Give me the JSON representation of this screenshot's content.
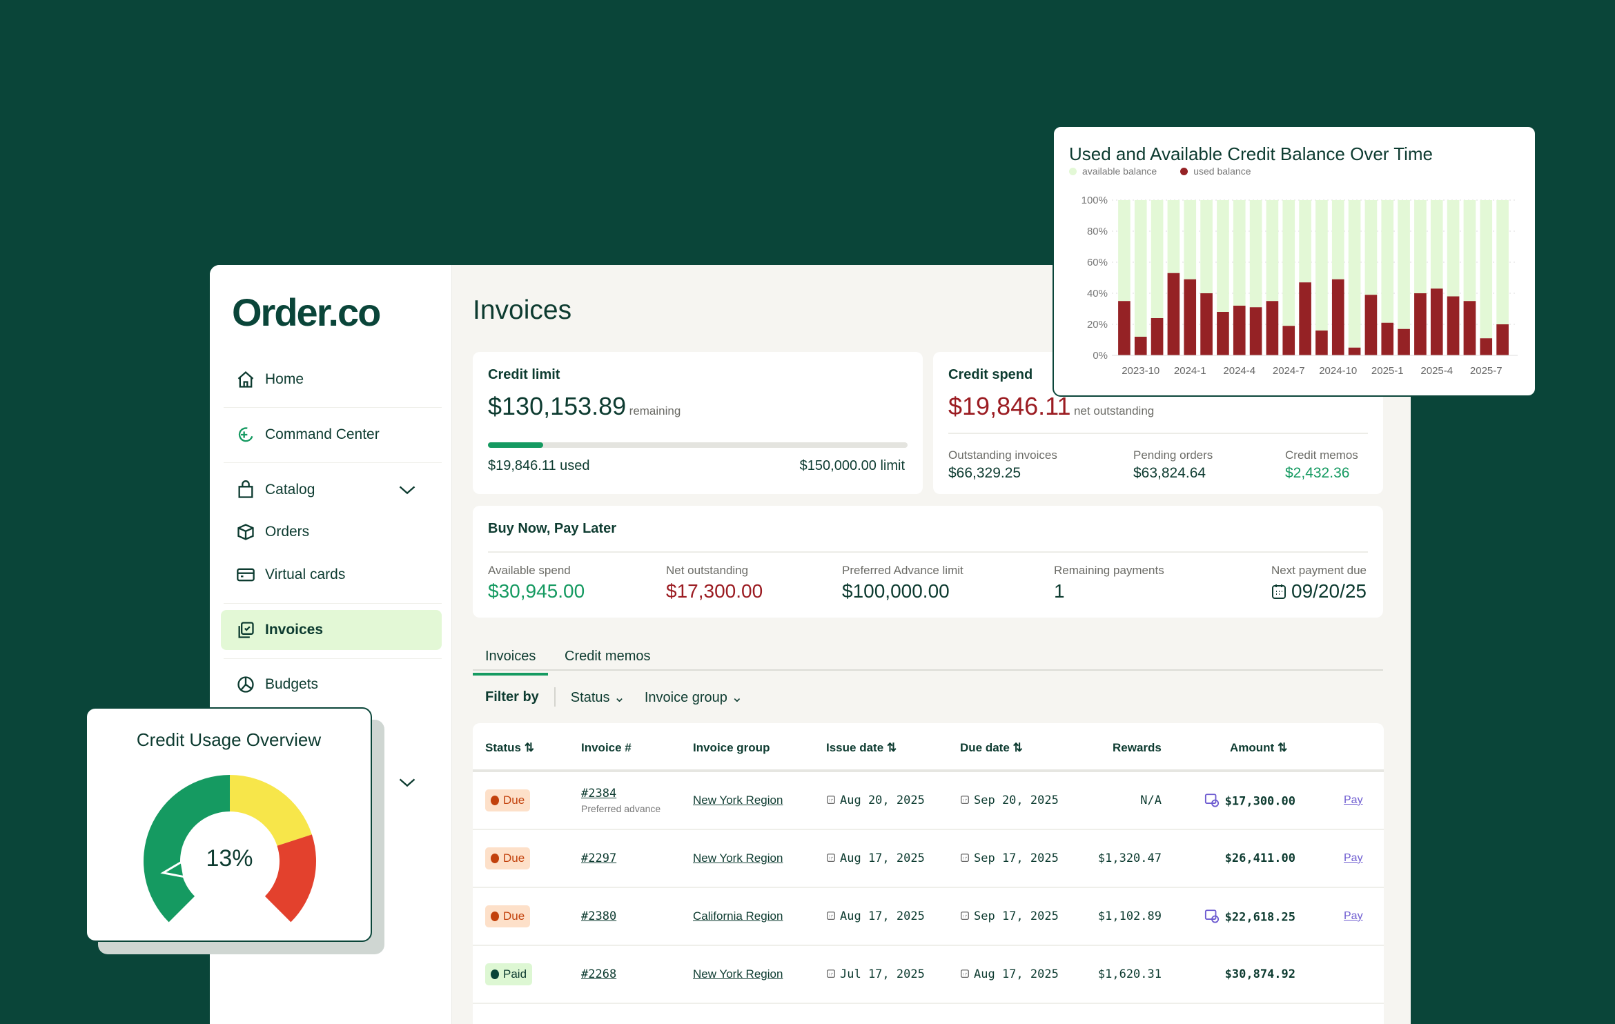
{
  "brand": "Order.co",
  "sidebar": {
    "items": [
      {
        "label": "Home",
        "icon": "home-icon"
      },
      {
        "label": "Command Center",
        "icon": "sparkle-icon"
      },
      {
        "label": "Catalog",
        "icon": "bag-icon"
      },
      {
        "label": "Orders",
        "icon": "box-icon"
      },
      {
        "label": "Virtual cards",
        "icon": "card-icon"
      },
      {
        "label": "Invoices",
        "icon": "invoice-icon"
      },
      {
        "label": "Budgets",
        "icon": "pie-icon"
      }
    ]
  },
  "page": {
    "title": "Invoices"
  },
  "credit_limit": {
    "title": "Credit limit",
    "remaining": "$130,153.89",
    "remaining_label": "remaining",
    "used": "$19,846.11 used",
    "limit": "$150,000.00 limit",
    "used_fraction": 0.132
  },
  "credit_spend": {
    "title": "Credit spend",
    "amount": "$19,846.11",
    "amount_label": "net outstanding",
    "stats": [
      {
        "label": "Outstanding invoices",
        "value": "$66,329.25"
      },
      {
        "label": "Pending orders",
        "value": "$63,824.64"
      },
      {
        "label": "Credit memos",
        "value": "$2,432.36"
      }
    ]
  },
  "bnpl": {
    "title": "Buy Now, Pay Later",
    "stats": [
      {
        "label": "Available spend",
        "value": "$30,945.00"
      },
      {
        "label": "Net outstanding",
        "value": "$17,300.00"
      },
      {
        "label": "Preferred Advance limit",
        "value": "$100,000.00"
      },
      {
        "label": "Remaining payments",
        "value": "1"
      },
      {
        "label": "Next payment due",
        "value": "09/20/25"
      }
    ]
  },
  "tabs": [
    "Invoices",
    "Credit memos"
  ],
  "filter": {
    "label": "Filter by",
    "options": [
      "Status",
      "Invoice group"
    ]
  },
  "table": {
    "headers": [
      "Status",
      "Invoice #",
      "Invoice group",
      "Issue date",
      "Due date",
      "Rewards",
      "Amount"
    ],
    "rows": [
      {
        "status": "Due",
        "invoice": "#2384",
        "sub": "Preferred advance",
        "group": "New York Region",
        "issue": "Aug 20, 2025",
        "due": "Sep 20, 2025",
        "rewards": "N/A",
        "amount": "$17,300.00",
        "advance": true,
        "action": "Pay"
      },
      {
        "status": "Due",
        "invoice": "#2297",
        "sub": "",
        "group": "New York Region",
        "issue": "Aug 17, 2025",
        "due": "Sep 17, 2025",
        "rewards": "$1,320.47",
        "amount": "$26,411.00",
        "advance": false,
        "action": "Pay"
      },
      {
        "status": "Due",
        "invoice": "#2380",
        "sub": "",
        "group": "California Region",
        "issue": "Aug 17, 2025",
        "due": "Sep 17, 2025",
        "rewards": "$1,102.89",
        "amount": "$22,618.25",
        "advance": true,
        "action": "Pay"
      },
      {
        "status": "Paid",
        "invoice": "#2268",
        "sub": "",
        "group": "New York Region",
        "issue": "Jul 17, 2025",
        "due": "Aug 17, 2025",
        "rewards": "$1,620.31",
        "amount": "$30,874.92",
        "advance": false,
        "action": ""
      }
    ]
  },
  "gauge": {
    "title": "Credit Usage Overview",
    "value": "13%",
    "percent": 13,
    "colors": {
      "low": "#159a61",
      "mid": "#f7e64a",
      "high": "#e3412d"
    }
  },
  "chart_data": {
    "type": "bar",
    "stacked": true,
    "title": "Used and Available Credit Balance Over Time",
    "legend": [
      "available balance",
      "used balance"
    ],
    "legend_placement": "top-left",
    "colors": {
      "available balance": "#e3f8d6",
      "used balance": "#952225"
    },
    "ylim": [
      0,
      100
    ],
    "yticks": [
      "0%",
      "20%",
      "40%",
      "60%",
      "80%",
      "100%"
    ],
    "tick_labels": [
      "2023-10",
      "2024-1",
      "2024-4",
      "2024-7",
      "2024-10",
      "2025-1",
      "2025-4",
      "2025-7"
    ],
    "categories": [
      "2023-9",
      "2023-10",
      "2023-11",
      "2023-12",
      "2024-1",
      "2024-2",
      "2024-3",
      "2024-4",
      "2024-5",
      "2024-6",
      "2024-7",
      "2024-8",
      "2024-9",
      "2024-10",
      "2024-11",
      "2024-12",
      "2025-1",
      "2025-2",
      "2025-3",
      "2025-4",
      "2025-5",
      "2025-6",
      "2025-7",
      "2025-8"
    ],
    "series": [
      {
        "name": "used balance",
        "values": [
          35,
          12,
          24,
          53,
          49,
          40,
          28,
          32,
          31,
          35,
          19,
          47,
          16,
          49,
          5,
          39,
          21,
          17,
          40,
          43,
          38,
          35,
          11,
          20
        ]
      },
      {
        "name": "available balance",
        "values": [
          65,
          88,
          76,
          47,
          51,
          60,
          72,
          68,
          69,
          65,
          81,
          53,
          84,
          51,
          95,
          61,
          79,
          83,
          60,
          57,
          62,
          65,
          89,
          80
        ]
      }
    ]
  }
}
